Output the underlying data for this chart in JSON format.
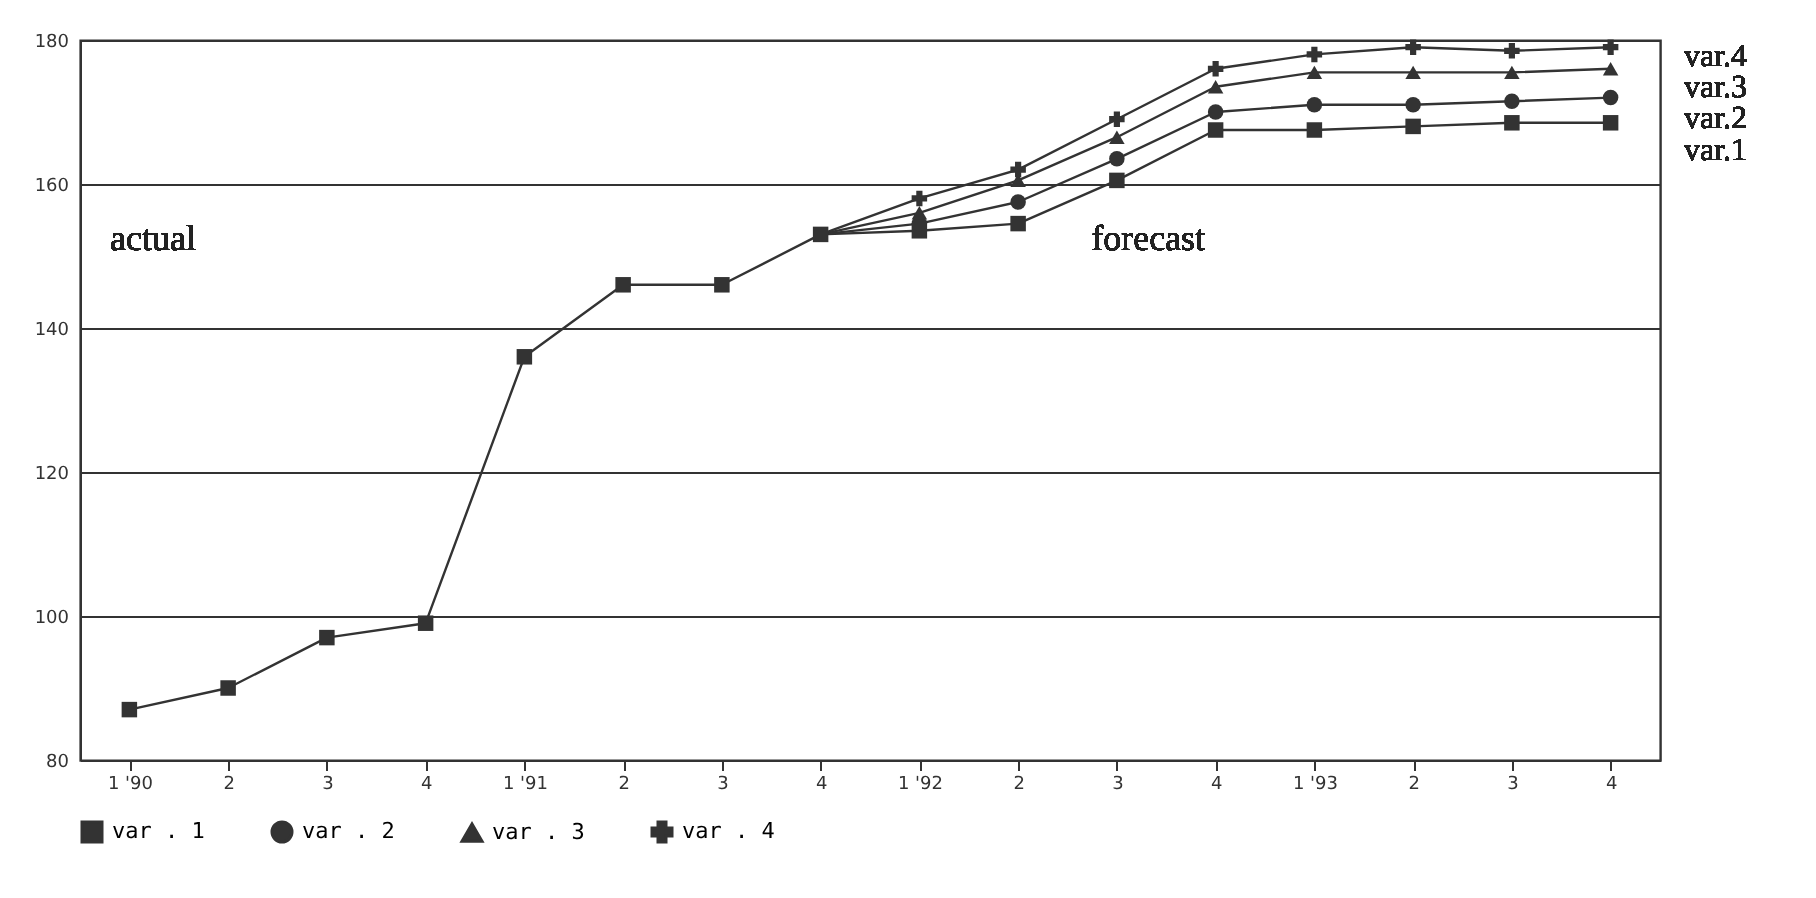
{
  "chart_data": {
    "type": "line",
    "categories": [
      "1 '90",
      "2",
      "3",
      "4",
      "1 '91",
      "2",
      "3",
      "4",
      "1 '92",
      "2",
      "3",
      "4",
      "1 '93",
      "2",
      "3",
      "4"
    ],
    "series": [
      {
        "name": "var . 1",
        "color": "#333333",
        "marker": "square",
        "values": [
          87,
          90,
          97,
          99,
          136,
          146,
          146,
          153,
          153.5,
          154.5,
          160.5,
          167.5,
          167.5,
          168,
          168.5,
          168.5
        ]
      },
      {
        "name": "var . 2",
        "color": "#333333",
        "marker": "circle",
        "values": [
          null,
          null,
          null,
          null,
          null,
          null,
          null,
          153,
          154.5,
          157.5,
          163.5,
          170,
          171,
          171,
          171.5,
          172
        ]
      },
      {
        "name": "var . 3",
        "color": "#333333",
        "marker": "triangle",
        "values": [
          null,
          null,
          null,
          null,
          null,
          null,
          null,
          153,
          156,
          160.5,
          166.5,
          173.5,
          175.5,
          175.5,
          175.5,
          176
        ]
      },
      {
        "name": "var . 4",
        "color": "#333333",
        "marker": "cross",
        "values": [
          null,
          null,
          null,
          null,
          null,
          null,
          null,
          153,
          158,
          162,
          169,
          176,
          178,
          179,
          178.5,
          179
        ]
      }
    ],
    "ylim": [
      80,
      180
    ],
    "yticks": [
      80,
      100,
      120,
      140,
      160,
      180
    ],
    "grid": "y",
    "legend": "bottom",
    "line_style": "solid",
    "annotations": [
      "actual",
      "forecast",
      "var.4",
      "var.3",
      "var.2",
      "var.1"
    ]
  }
}
